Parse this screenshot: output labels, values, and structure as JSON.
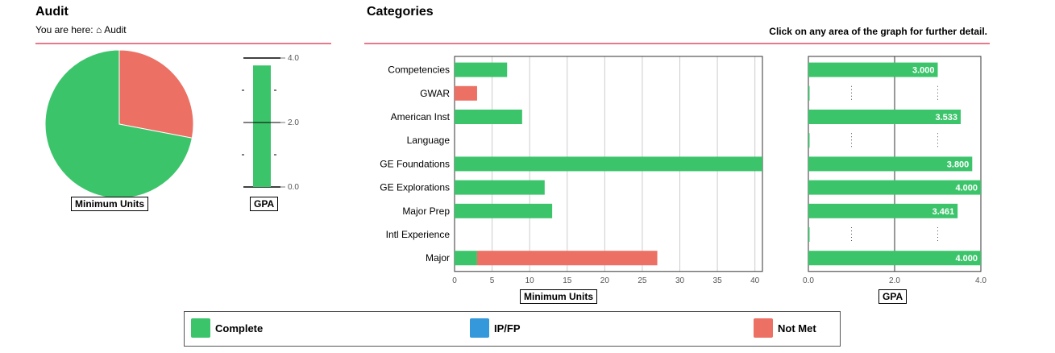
{
  "audit": {
    "title": "Audit",
    "breadcrumb_prefix": "You are here:",
    "breadcrumb_icon": "home-icon",
    "breadcrumb_item": "Audit"
  },
  "categories_panel": {
    "title": "Categories",
    "note": "Click on any area of the graph for further detail."
  },
  "colors": {
    "complete": "#3cc46b",
    "ipfp": "#3498db",
    "not_met": "#ec7063",
    "rule": "#e8788a"
  },
  "legend": {
    "items": [
      {
        "label": "Complete",
        "color": "#3cc46b"
      },
      {
        "label": "IP/FP",
        "color": "#3498db"
      },
      {
        "label": "Not Met",
        "color": "#ec7063"
      }
    ]
  },
  "chart_data": [
    {
      "type": "pie",
      "xlabel": "Minimum Units",
      "slices": [
        {
          "status": "Complete",
          "value": 72
        },
        {
          "status": "Not Met",
          "value": 28
        }
      ]
    },
    {
      "type": "bar",
      "orientation": "vertical",
      "xlabel": "GPA",
      "ylim": [
        0,
        4
      ],
      "yticks": [
        "0.0",
        "2.0",
        "4.0"
      ],
      "values": [
        3.77
      ]
    },
    {
      "type": "bar",
      "orientation": "horizontal",
      "stacked": true,
      "xlabel": "Minimum Units",
      "xlim": [
        0,
        41
      ],
      "xticks": [
        "0",
        "5",
        "10",
        "15",
        "20",
        "25",
        "30",
        "35",
        "40"
      ],
      "categories": [
        "Competencies",
        "GWAR",
        "American Inst",
        "Language",
        "GE Foundations",
        "GE Explorations",
        "Major Prep",
        "Intl Experience",
        "Major"
      ],
      "series": [
        {
          "name": "Complete",
          "values": [
            7,
            0,
            9,
            0,
            41,
            12,
            13,
            0,
            3
          ]
        },
        {
          "name": "Not Met",
          "values": [
            0,
            3,
            0,
            0,
            0,
            0,
            0,
            0,
            24
          ]
        }
      ]
    },
    {
      "type": "bar",
      "orientation": "horizontal",
      "xlabel": "GPA",
      "xlim": [
        0,
        4
      ],
      "xticks": [
        "0.0",
        "2.0",
        "4.0"
      ],
      "categories": [
        "Competencies",
        "GWAR",
        "American Inst",
        "Language",
        "GE Foundations",
        "GE Explorations",
        "Major Prep",
        "Intl Experience",
        "Major"
      ],
      "values": [
        3.0,
        0,
        3.533,
        0,
        3.8,
        4.0,
        3.461,
        0,
        4.0
      ],
      "labels": [
        "3.000",
        "",
        "3.533",
        "",
        "3.800",
        "4.000",
        "3.461",
        "",
        "4.000"
      ]
    }
  ]
}
